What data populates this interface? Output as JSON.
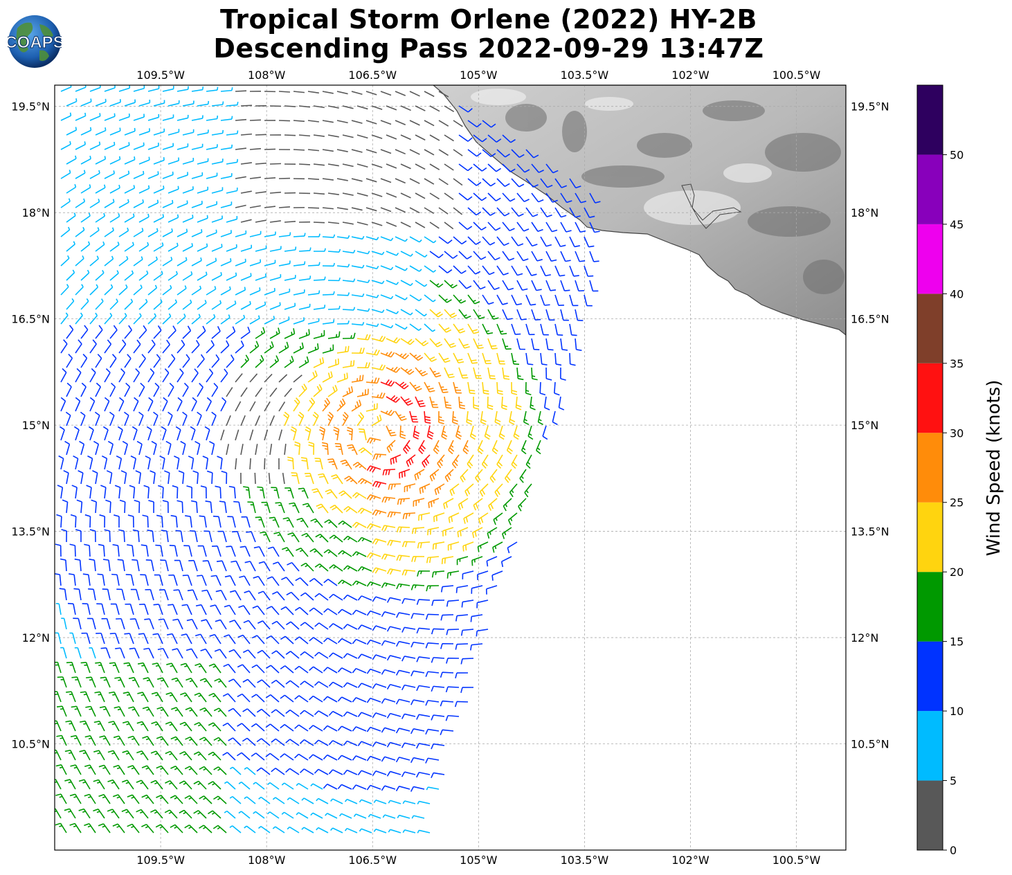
{
  "title": {
    "line1": "Tropical Storm Orlene (2022) HY-2B",
    "line2": "Descending Pass 2022-09-29 13:47Z"
  },
  "logo": {
    "text": "COAPS",
    "icon": "coaps-globe-logo"
  },
  "map": {
    "extent": {
      "lon": [
        -111.0,
        -99.8
      ],
      "lat": [
        9.0,
        19.8
      ]
    },
    "lon_ticks": [
      "109.5°W",
      "108°W",
      "106.5°W",
      "105°W",
      "103.5°W",
      "102°W",
      "100.5°W"
    ],
    "lat_ticks": [
      "19.5°N",
      "18°N",
      "16.5°N",
      "15°N",
      "13.5°N",
      "12°N",
      "10.5°N"
    ],
    "gridlines": true,
    "land": "grayscale terrain relief (Mexico)",
    "storm_center_approx": {
      "lon": -106.4,
      "lat": 14.9
    }
  },
  "colorbar": {
    "label": "Wind Speed (knots)",
    "ticks": [
      "0",
      "5",
      "10",
      "15",
      "20",
      "25",
      "30",
      "35",
      "40",
      "45",
      "50"
    ],
    "bins": [
      {
        "min": 0,
        "max": 5,
        "color": "#585858"
      },
      {
        "min": 5,
        "max": 10,
        "color": "#00bbff"
      },
      {
        "min": 10,
        "max": 15,
        "color": "#0033ff"
      },
      {
        "min": 15,
        "max": 20,
        "color": "#009900"
      },
      {
        "min": 20,
        "max": 25,
        "color": "#ffd40f"
      },
      {
        "min": 25,
        "max": 30,
        "color": "#ff8c0a"
      },
      {
        "min": 30,
        "max": 35,
        "color": "#ff1111"
      },
      {
        "min": 35,
        "max": 40,
        "color": "#7f3f2a"
      },
      {
        "min": 40,
        "max": 45,
        "color": "#ee00ee"
      },
      {
        "min": 45,
        "max": 50,
        "color": "#8800bb"
      },
      {
        "min": 50,
        "max": 55,
        "color": "#2e005f"
      }
    ]
  }
}
